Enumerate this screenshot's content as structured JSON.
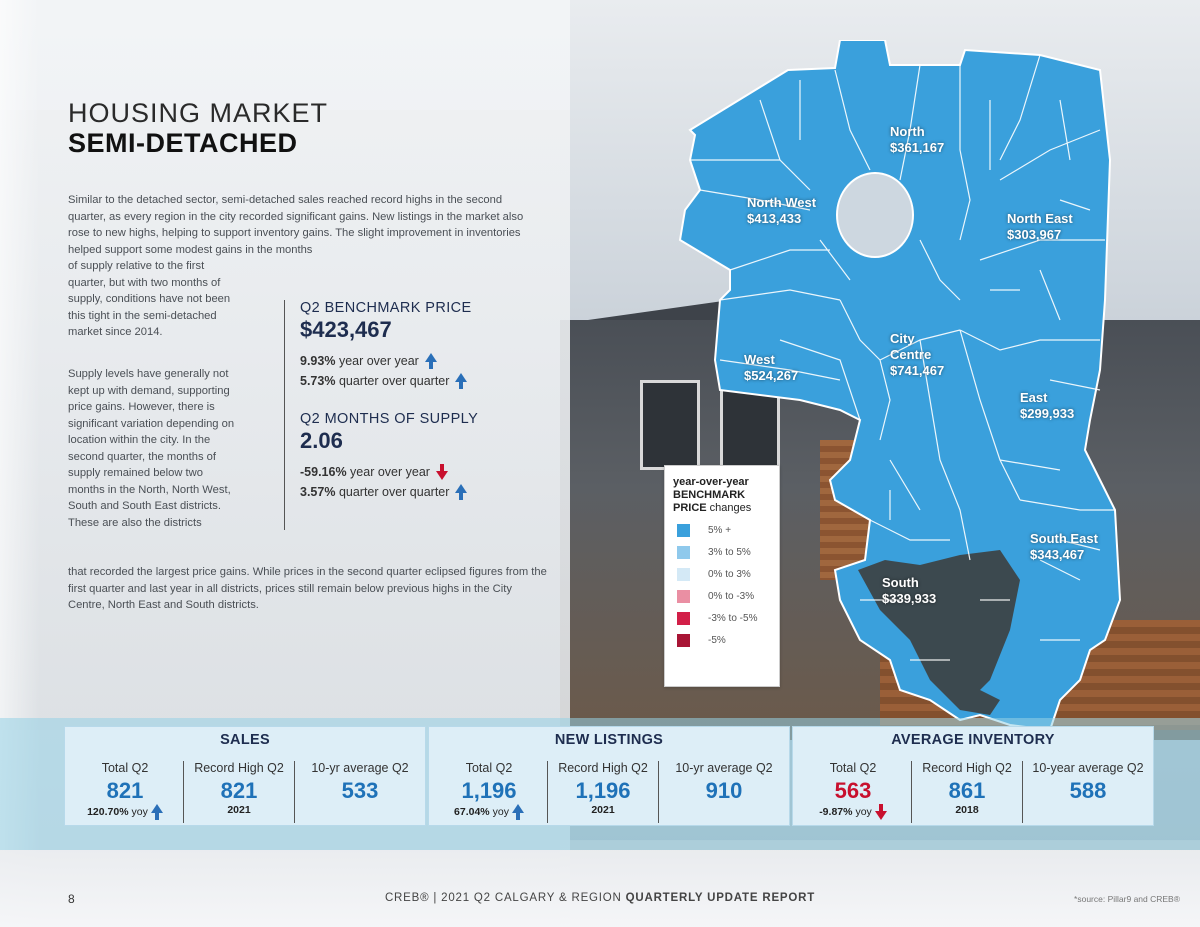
{
  "heading": {
    "line1": "HOUSING MARKET",
    "line2": "SEMI-DETACHED"
  },
  "paragraphs": {
    "p1_full": "Similar to the detached sector, semi-detached sales reached record highs in the second quarter, as every region in the city recorded significant gains. New listings in the market also rose to new highs, helping to support inventory gains. The slight improvement in inventories helped support some modest gains in the months",
    "p1_narrow": "of supply relative to the first quarter, but with two months of supply, conditions have not been this tight in the semi-detached market since 2014.",
    "p2_narrow": "Supply levels have generally not kept up with demand, supporting price gains. However, there is significant variation depending on location within the city. In the second quarter, the months of supply remained below two months in the North, North West, South and South East districts. These are also the districts",
    "p2_full": "that recorded the largest price gains. While prices in the second quarter eclipsed figures from the first quarter and last year in all districts, prices still remain below previous highs in the City Centre, North East and South districts."
  },
  "benchmark": {
    "label": "Q2 BENCHMARK PRICE",
    "value": "$423,467",
    "yoy_pct": "9.93%",
    "yoy_text": "year over year",
    "qoq_pct": "5.73%",
    "qoq_text": "quarter over quarter"
  },
  "supply": {
    "label": "Q2 MONTHS OF SUPPLY",
    "value": "2.06",
    "yoy_pct": "-59.16%",
    "yoy_text": "year over year",
    "qoq_pct": "3.57%",
    "qoq_text": "quarter over quarter"
  },
  "map": {
    "districts": [
      {
        "name": "North",
        "price": "$361,167"
      },
      {
        "name": "North West",
        "price": "$413,433"
      },
      {
        "name": "North East",
        "price": "$303,967"
      },
      {
        "name": "City Centre",
        "price": "$741,467"
      },
      {
        "name": "West",
        "price": "$524,267"
      },
      {
        "name": "East",
        "price": "$299,933"
      },
      {
        "name": "South East",
        "price": "$343,467"
      },
      {
        "name": "South",
        "price": "$339,933"
      }
    ],
    "city_centre_line1": "City",
    "city_centre_line2": "Centre"
  },
  "legend": {
    "title_line1": "year-over-year",
    "title_line2": "BENCHMARK",
    "title_line3_bold": "PRICE",
    "title_line3_rest": " changes",
    "items": [
      {
        "label": "5% +",
        "color": "#3aa0dc"
      },
      {
        "label": "3% to 5%",
        "color": "#8fc9ec"
      },
      {
        "label": "0% to 3%",
        "color": "#d4e9f6"
      },
      {
        "label": "0% to -3%",
        "color": "#ea8fa3"
      },
      {
        "label": "-3% to -5%",
        "color": "#d21f48"
      },
      {
        "label": "-5%",
        "color": "#a81535"
      }
    ]
  },
  "stats": {
    "sales": {
      "title": "SALES",
      "total_label": "Total Q2",
      "total": "821",
      "total_change": "120.70%",
      "total_change_text": " yoy",
      "record_label": "Record High Q2",
      "record": "821",
      "record_year": "2021",
      "avg_label": "10-yr average Q2",
      "avg": "533"
    },
    "listings": {
      "title": "NEW LISTINGS",
      "total_label": "Total Q2",
      "total": "1,196",
      "total_change": "67.04%",
      "total_change_text": " yoy",
      "record_label": "Record High Q2",
      "record": "1,196",
      "record_year": "2021",
      "avg_label": "10-yr average Q2",
      "avg": "910"
    },
    "inventory": {
      "title": "AVERAGE INVENTORY",
      "total_label": "Total Q2",
      "total": "563",
      "total_change": "-9.87%",
      "total_change_text": " yoy",
      "record_label": "Record High Q2",
      "record": "861",
      "record_year": "2018",
      "avg_label": "10-year average Q2",
      "avg": "588"
    }
  },
  "footer": {
    "page": "8",
    "text_plain": "CREB® | 2021 Q2 CALGARY & REGION ",
    "text_bold": "QUARTERLY UPDATE REPORT",
    "source": "*source: Pillar9 and CREB®"
  },
  "colors": {
    "map_blue": "#3aa0dc",
    "navy": "#1e2d4f",
    "stat_blue": "#1f72b8",
    "red": "#c8102e"
  }
}
